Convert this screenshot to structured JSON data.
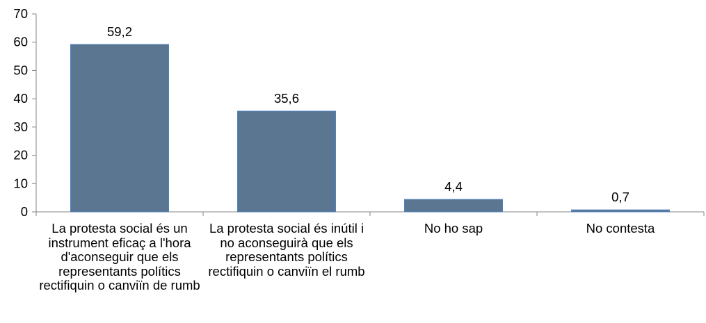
{
  "chart_data": {
    "type": "bar",
    "categories": [
      "La protesta social és un instrument eficaç a l'hora d'aconseguir que els representants polítics rectifiquin o canviïn de rumb",
      "La protesta social és inútil i no aconseguirà que els representants polítics rectifiquin o canviïn el rumb",
      "No ho sap",
      "No contesta"
    ],
    "values": [
      59.2,
      35.6,
      4.4,
      0.7
    ],
    "data_labels": [
      "59,2",
      "35,6",
      "4,4",
      "0,7"
    ],
    "ylim": [
      0,
      70
    ],
    "yticks": [
      0,
      10,
      20,
      30,
      40,
      50,
      60,
      70
    ],
    "title": "",
    "xlabel": "",
    "ylabel": "",
    "grid": false,
    "legend": "none",
    "bar_color": "#5b7690",
    "bar_border_color": "#4f81bd",
    "axis_color": "#868686"
  }
}
